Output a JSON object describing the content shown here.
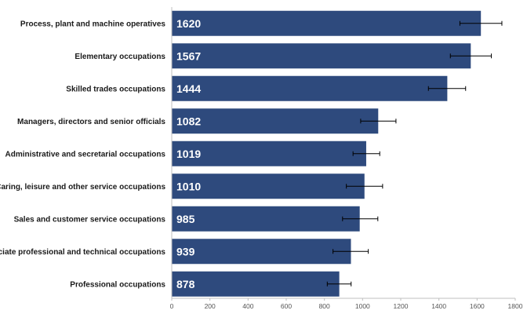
{
  "chart_data": {
    "type": "bar",
    "orientation": "horizontal",
    "title": "",
    "xlabel": "",
    "ylabel": "",
    "categories": [
      "Process, plant and machine operatives",
      "Elementary occupations",
      "Skilled trades occupations",
      "Managers, directors and senior officials",
      "Administrative and secretarial occupations",
      "Caring, leisure and other service occupations",
      "Sales and customer service occupations",
      "Associate professional and technical occupations",
      "Professional occupations"
    ],
    "values": [
      1620,
      1567,
      1444,
      1082,
      1019,
      1010,
      985,
      939,
      878
    ],
    "error_low": [
      1510,
      1460,
      1345,
      990,
      950,
      915,
      895,
      845,
      815
    ],
    "error_high": [
      1730,
      1675,
      1540,
      1175,
      1090,
      1105,
      1080,
      1030,
      940
    ],
    "xlim": [
      0,
      1800
    ],
    "xticks": [
      0,
      200,
      400,
      600,
      800,
      1000,
      1200,
      1400,
      1600,
      1800
    ],
    "data_labels_shown": true,
    "grid": false,
    "legend": "none",
    "colors": {
      "bar": "#2e4a7d",
      "error_bar": "#000000",
      "axis": "#bfbfbf"
    }
  }
}
